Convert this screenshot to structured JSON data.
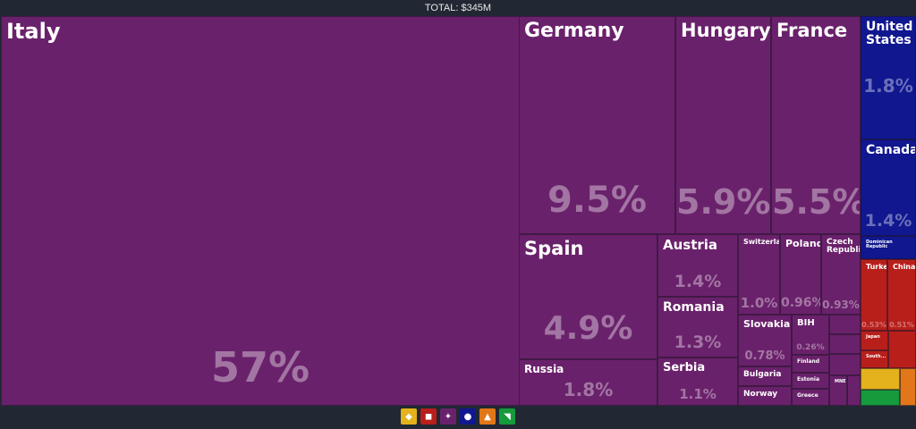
{
  "total_label": "TOTAL: $345M",
  "colors": {
    "europe": "#6a216b",
    "north_america": "#10178f",
    "asia": "#b81f1b",
    "africa": "#e3b21d",
    "oceania": "#e2771a",
    "south_america": "#159a3c",
    "background": "#212833"
  },
  "legend": [
    {
      "name": "africa",
      "icon": "africa-icon",
      "color": "#e3b21d"
    },
    {
      "name": "asia",
      "icon": "asia-icon",
      "color": "#b81f1b"
    },
    {
      "name": "europe",
      "icon": "europe-icon",
      "color": "#6a216b"
    },
    {
      "name": "north-america",
      "icon": "north-america-icon",
      "color": "#10178f"
    },
    {
      "name": "oceania",
      "icon": "oceania-icon",
      "color": "#e2771a"
    },
    {
      "name": "south-america",
      "icon": "south-america-icon",
      "color": "#159a3c"
    }
  ],
  "chart_data": {
    "type": "treemap",
    "title": "TOTAL: $345M",
    "items": [
      {
        "name": "Italy",
        "label": "Italy",
        "pct_label": "57%",
        "share": 57,
        "region": "europe"
      },
      {
        "name": "Germany",
        "label": "Germany",
        "pct_label": "9.5%",
        "share": 9.5,
        "region": "europe"
      },
      {
        "name": "Hungary",
        "label": "Hungary",
        "pct_label": "5.9%",
        "share": 5.9,
        "region": "europe"
      },
      {
        "name": "France",
        "label": "France",
        "pct_label": "5.5%",
        "share": 5.5,
        "region": "europe"
      },
      {
        "name": "Spain",
        "label": "Spain",
        "pct_label": "4.9%",
        "share": 4.9,
        "region": "europe"
      },
      {
        "name": "Russia",
        "label": "Russia",
        "pct_label": "1.8%",
        "share": 1.8,
        "region": "europe"
      },
      {
        "name": "Austria",
        "label": "Austria",
        "pct_label": "1.4%",
        "share": 1.4,
        "region": "europe"
      },
      {
        "name": "Romania",
        "label": "Romania",
        "pct_label": "1.3%",
        "share": 1.3,
        "region": "europe"
      },
      {
        "name": "Serbia",
        "label": "Serbia",
        "pct_label": "1.1%",
        "share": 1.1,
        "region": "europe"
      },
      {
        "name": "Switzerland",
        "label": "Switzerland",
        "pct_label": "1.0%",
        "share": 1.0,
        "region": "europe"
      },
      {
        "name": "Poland",
        "label": "Poland",
        "pct_label": "0.96%",
        "share": 0.96,
        "region": "europe"
      },
      {
        "name": "Czech Republic",
        "label": "Czech Republic",
        "pct_label": "0.93%",
        "share": 0.93,
        "region": "europe"
      },
      {
        "name": "Slovakia",
        "label": "Slovakia",
        "pct_label": "0.78%",
        "share": 0.78,
        "region": "europe"
      },
      {
        "name": "BIH",
        "label": "BIH",
        "pct_label": "0.26%",
        "share": 0.26,
        "region": "europe"
      },
      {
        "name": "Bulgaria",
        "label": "Bulgaria",
        "pct_label": "",
        "region": "europe"
      },
      {
        "name": "Norway",
        "label": "Norway",
        "pct_label": "",
        "region": "europe"
      },
      {
        "name": "Finland",
        "label": "Finland",
        "pct_label": "",
        "region": "europe"
      },
      {
        "name": "Estonia",
        "label": "Estonia",
        "pct_label": "",
        "region": "europe"
      },
      {
        "name": "Greece",
        "label": "Greece",
        "pct_label": "",
        "region": "europe"
      },
      {
        "name": "MNE",
        "label": "MNE",
        "pct_label": "",
        "region": "europe"
      },
      {
        "name": "United States",
        "label": "United States",
        "pct_label": "1.8%",
        "share": 1.8,
        "region": "north_america"
      },
      {
        "name": "Canada",
        "label": "Canada",
        "pct_label": "1.4%",
        "share": 1.4,
        "region": "north_america"
      },
      {
        "name": "Dominican Republic",
        "label": "Dominican Republic",
        "pct_label": "",
        "region": "north_america"
      },
      {
        "name": "Turkey",
        "label": "Turkey",
        "pct_label": "0.53%",
        "share": 0.53,
        "region": "asia"
      },
      {
        "name": "China",
        "label": "China",
        "pct_label": "0.51%",
        "share": 0.51,
        "region": "asia"
      },
      {
        "name": "Japan",
        "label": "Japan",
        "pct_label": "",
        "region": "asia"
      },
      {
        "name": "South Korea",
        "label": "South...",
        "pct_label": "",
        "region": "asia"
      }
    ]
  }
}
